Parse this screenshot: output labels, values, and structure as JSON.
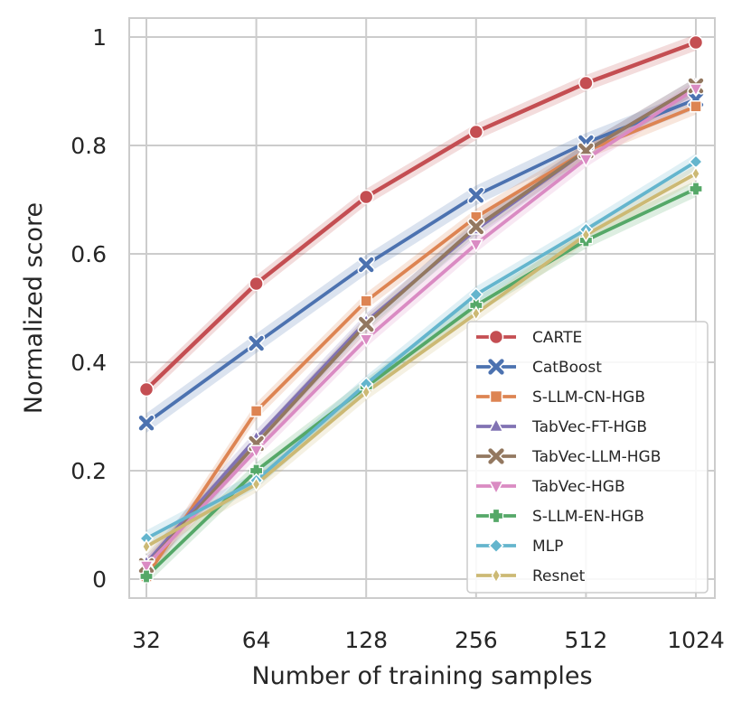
{
  "chart_data": {
    "type": "line",
    "title": "",
    "xlabel": "Number of training samples",
    "ylabel": "Normalized score",
    "x_scale": "log2",
    "x": [
      32,
      64,
      128,
      256,
      512,
      1024
    ],
    "x_tick_labels": [
      "32",
      "64",
      "128",
      "256",
      "512",
      "1024"
    ],
    "ylim": [
      -0.035,
      1.035
    ],
    "y_ticks": [
      0,
      0.2,
      0.4,
      0.6,
      0.8,
      1
    ],
    "y_tick_labels": [
      "0",
      "0.2",
      "0.4",
      "0.6",
      "0.8",
      "1"
    ],
    "grid": true,
    "legend_position": "bottom-right",
    "series": [
      {
        "name": "CARTE",
        "color": "#c44e52",
        "marker": "circle",
        "values": [
          0.35,
          0.545,
          0.705,
          0.825,
          0.915,
          0.99
        ],
        "band": 0.015
      },
      {
        "name": "CatBoost",
        "color": "#4c72b0",
        "marker": "x",
        "values": [
          0.288,
          0.435,
          0.58,
          0.708,
          0.805,
          0.885
        ],
        "band": 0.018
      },
      {
        "name": "S-LLM-CN-HGB",
        "color": "#dd8452",
        "marker": "square",
        "values": [
          0.005,
          0.31,
          0.513,
          0.668,
          0.79,
          0.872
        ],
        "band": 0.015
      },
      {
        "name": "TabVec-FT-HGB",
        "color": "#8172b3",
        "marker": "triangle-up",
        "values": [
          0.03,
          0.26,
          0.475,
          0.645,
          0.79,
          0.91
        ],
        "band": 0.015
      },
      {
        "name": "TabVec-LLM-HGB",
        "color": "#937860",
        "marker": "x",
        "values": [
          0.025,
          0.25,
          0.47,
          0.65,
          0.79,
          0.91
        ],
        "band": 0.015
      },
      {
        "name": "TabVec-HGB",
        "color": "#da8bc3",
        "marker": "triangle-down",
        "values": [
          0.025,
          0.238,
          0.443,
          0.618,
          0.775,
          0.905
        ],
        "band": 0.015
      },
      {
        "name": "S-LLM-EN-HGB",
        "color": "#55a868",
        "marker": "plus",
        "values": [
          0.005,
          0.2,
          0.355,
          0.505,
          0.625,
          0.72
        ],
        "band": 0.015
      },
      {
        "name": "MLP",
        "color": "#64b5cd",
        "marker": "diamond",
        "values": [
          0.075,
          0.182,
          0.36,
          0.525,
          0.645,
          0.77
        ],
        "band": 0.015
      },
      {
        "name": "Resnet",
        "color": "#ccb974",
        "marker": "thin-diamond",
        "values": [
          0.06,
          0.175,
          0.345,
          0.49,
          0.635,
          0.748
        ],
        "band": 0.015
      }
    ]
  }
}
